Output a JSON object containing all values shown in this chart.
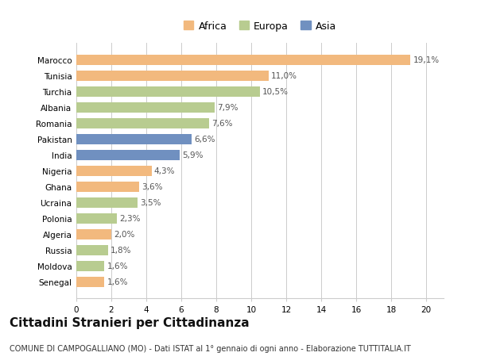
{
  "countries": [
    "Marocco",
    "Tunisia",
    "Turchia",
    "Albania",
    "Romania",
    "Pakistan",
    "India",
    "Nigeria",
    "Ghana",
    "Ucraina",
    "Polonia",
    "Algeria",
    "Russia",
    "Moldova",
    "Senegal"
  ],
  "values": [
    19.1,
    11.0,
    10.5,
    7.9,
    7.6,
    6.6,
    5.9,
    4.3,
    3.6,
    3.5,
    2.3,
    2.0,
    1.8,
    1.6,
    1.6
  ],
  "labels": [
    "19,1%",
    "11,0%",
    "10,5%",
    "7,9%",
    "7,6%",
    "6,6%",
    "5,9%",
    "4,3%",
    "3,6%",
    "3,5%",
    "2,3%",
    "2,0%",
    "1,8%",
    "1,6%",
    "1,6%"
  ],
  "continents": [
    "Africa",
    "Africa",
    "Europa",
    "Europa",
    "Europa",
    "Asia",
    "Asia",
    "Africa",
    "Africa",
    "Europa",
    "Europa",
    "Africa",
    "Europa",
    "Europa",
    "Africa"
  ],
  "colors": {
    "Africa": "#F2B97E",
    "Europa": "#B8CC90",
    "Asia": "#7090C0"
  },
  "xlim": [
    0,
    21
  ],
  "xticks": [
    0,
    2,
    4,
    6,
    8,
    10,
    12,
    14,
    16,
    18,
    20
  ],
  "title": "Cittadini Stranieri per Cittadinanza",
  "subtitle": "COMUNE DI CAMPOGALLIANO (MO) - Dati ISTAT al 1° gennaio di ogni anno - Elaborazione TUTTITALIA.IT",
  "bg_color": "#ffffff",
  "grid_color": "#cccccc",
  "title_fontsize": 11,
  "subtitle_fontsize": 7,
  "label_fontsize": 7.5,
  "tick_fontsize": 7.5,
  "legend_fontsize": 9
}
